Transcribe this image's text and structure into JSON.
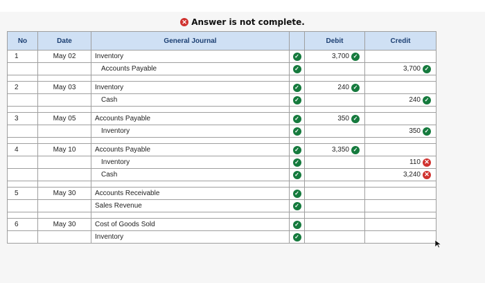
{
  "status": {
    "title": "Answer is not complete."
  },
  "table": {
    "headers": {
      "no": "No",
      "date": "Date",
      "account": "General Journal",
      "debit": "Debit",
      "credit": "Credit"
    },
    "entries": [
      {
        "no": "1",
        "date": "May 02",
        "lines": [
          {
            "account": "Inventory",
            "indent": false,
            "debit": "3,700",
            "debit_status": "correct",
            "credit": "",
            "credit_status": ""
          },
          {
            "account": "Accounts Payable",
            "indent": true,
            "debit": "",
            "debit_status": "",
            "credit": "3,700",
            "credit_status": "correct"
          }
        ]
      },
      {
        "no": "2",
        "date": "May 03",
        "lines": [
          {
            "account": "Inventory",
            "indent": false,
            "debit": "240",
            "debit_status": "correct",
            "credit": "",
            "credit_status": ""
          },
          {
            "account": "Cash",
            "indent": true,
            "debit": "",
            "debit_status": "",
            "credit": "240",
            "credit_status": "correct"
          }
        ]
      },
      {
        "no": "3",
        "date": "May 05",
        "lines": [
          {
            "account": "Accounts Payable",
            "indent": false,
            "debit": "350",
            "debit_status": "correct",
            "credit": "",
            "credit_status": ""
          },
          {
            "account": "Inventory",
            "indent": true,
            "debit": "",
            "debit_status": "",
            "credit": "350",
            "credit_status": "correct"
          }
        ]
      },
      {
        "no": "4",
        "date": "May 10",
        "lines": [
          {
            "account": "Accounts Payable",
            "indent": false,
            "debit": "3,350",
            "debit_status": "correct",
            "credit": "",
            "credit_status": ""
          },
          {
            "account": "Inventory",
            "indent": true,
            "debit": "",
            "debit_status": "",
            "credit": "110",
            "credit_status": "incorrect"
          },
          {
            "account": "Cash",
            "indent": true,
            "debit": "",
            "debit_status": "",
            "credit": "3,240",
            "credit_status": "incorrect"
          }
        ]
      },
      {
        "no": "5",
        "date": "May 30",
        "lines": [
          {
            "account": "Accounts Receivable",
            "indent": false,
            "debit": "",
            "debit_status": "",
            "credit": "",
            "credit_status": ""
          },
          {
            "account": "Sales Revenue",
            "indent": false,
            "debit": "",
            "debit_status": "",
            "credit": "",
            "credit_status": ""
          }
        ]
      },
      {
        "no": "6",
        "date": "May 30",
        "lines": [
          {
            "account": "Cost of Goods Sold",
            "indent": false,
            "debit": "",
            "debit_status": "",
            "credit": "",
            "credit_status": ""
          },
          {
            "account": "Inventory",
            "indent": false,
            "debit": "",
            "debit_status": "",
            "credit": "",
            "credit_status": ""
          }
        ]
      }
    ]
  },
  "icons": {
    "correct": "check-circle-icon",
    "incorrect": "x-circle-icon",
    "cursor": "mouse-pointer-icon"
  },
  "colors": {
    "correct": "#157a3d",
    "incorrect": "#d0322f",
    "header_bg": "#cfe0f4",
    "header_text": "#1c3f72"
  }
}
